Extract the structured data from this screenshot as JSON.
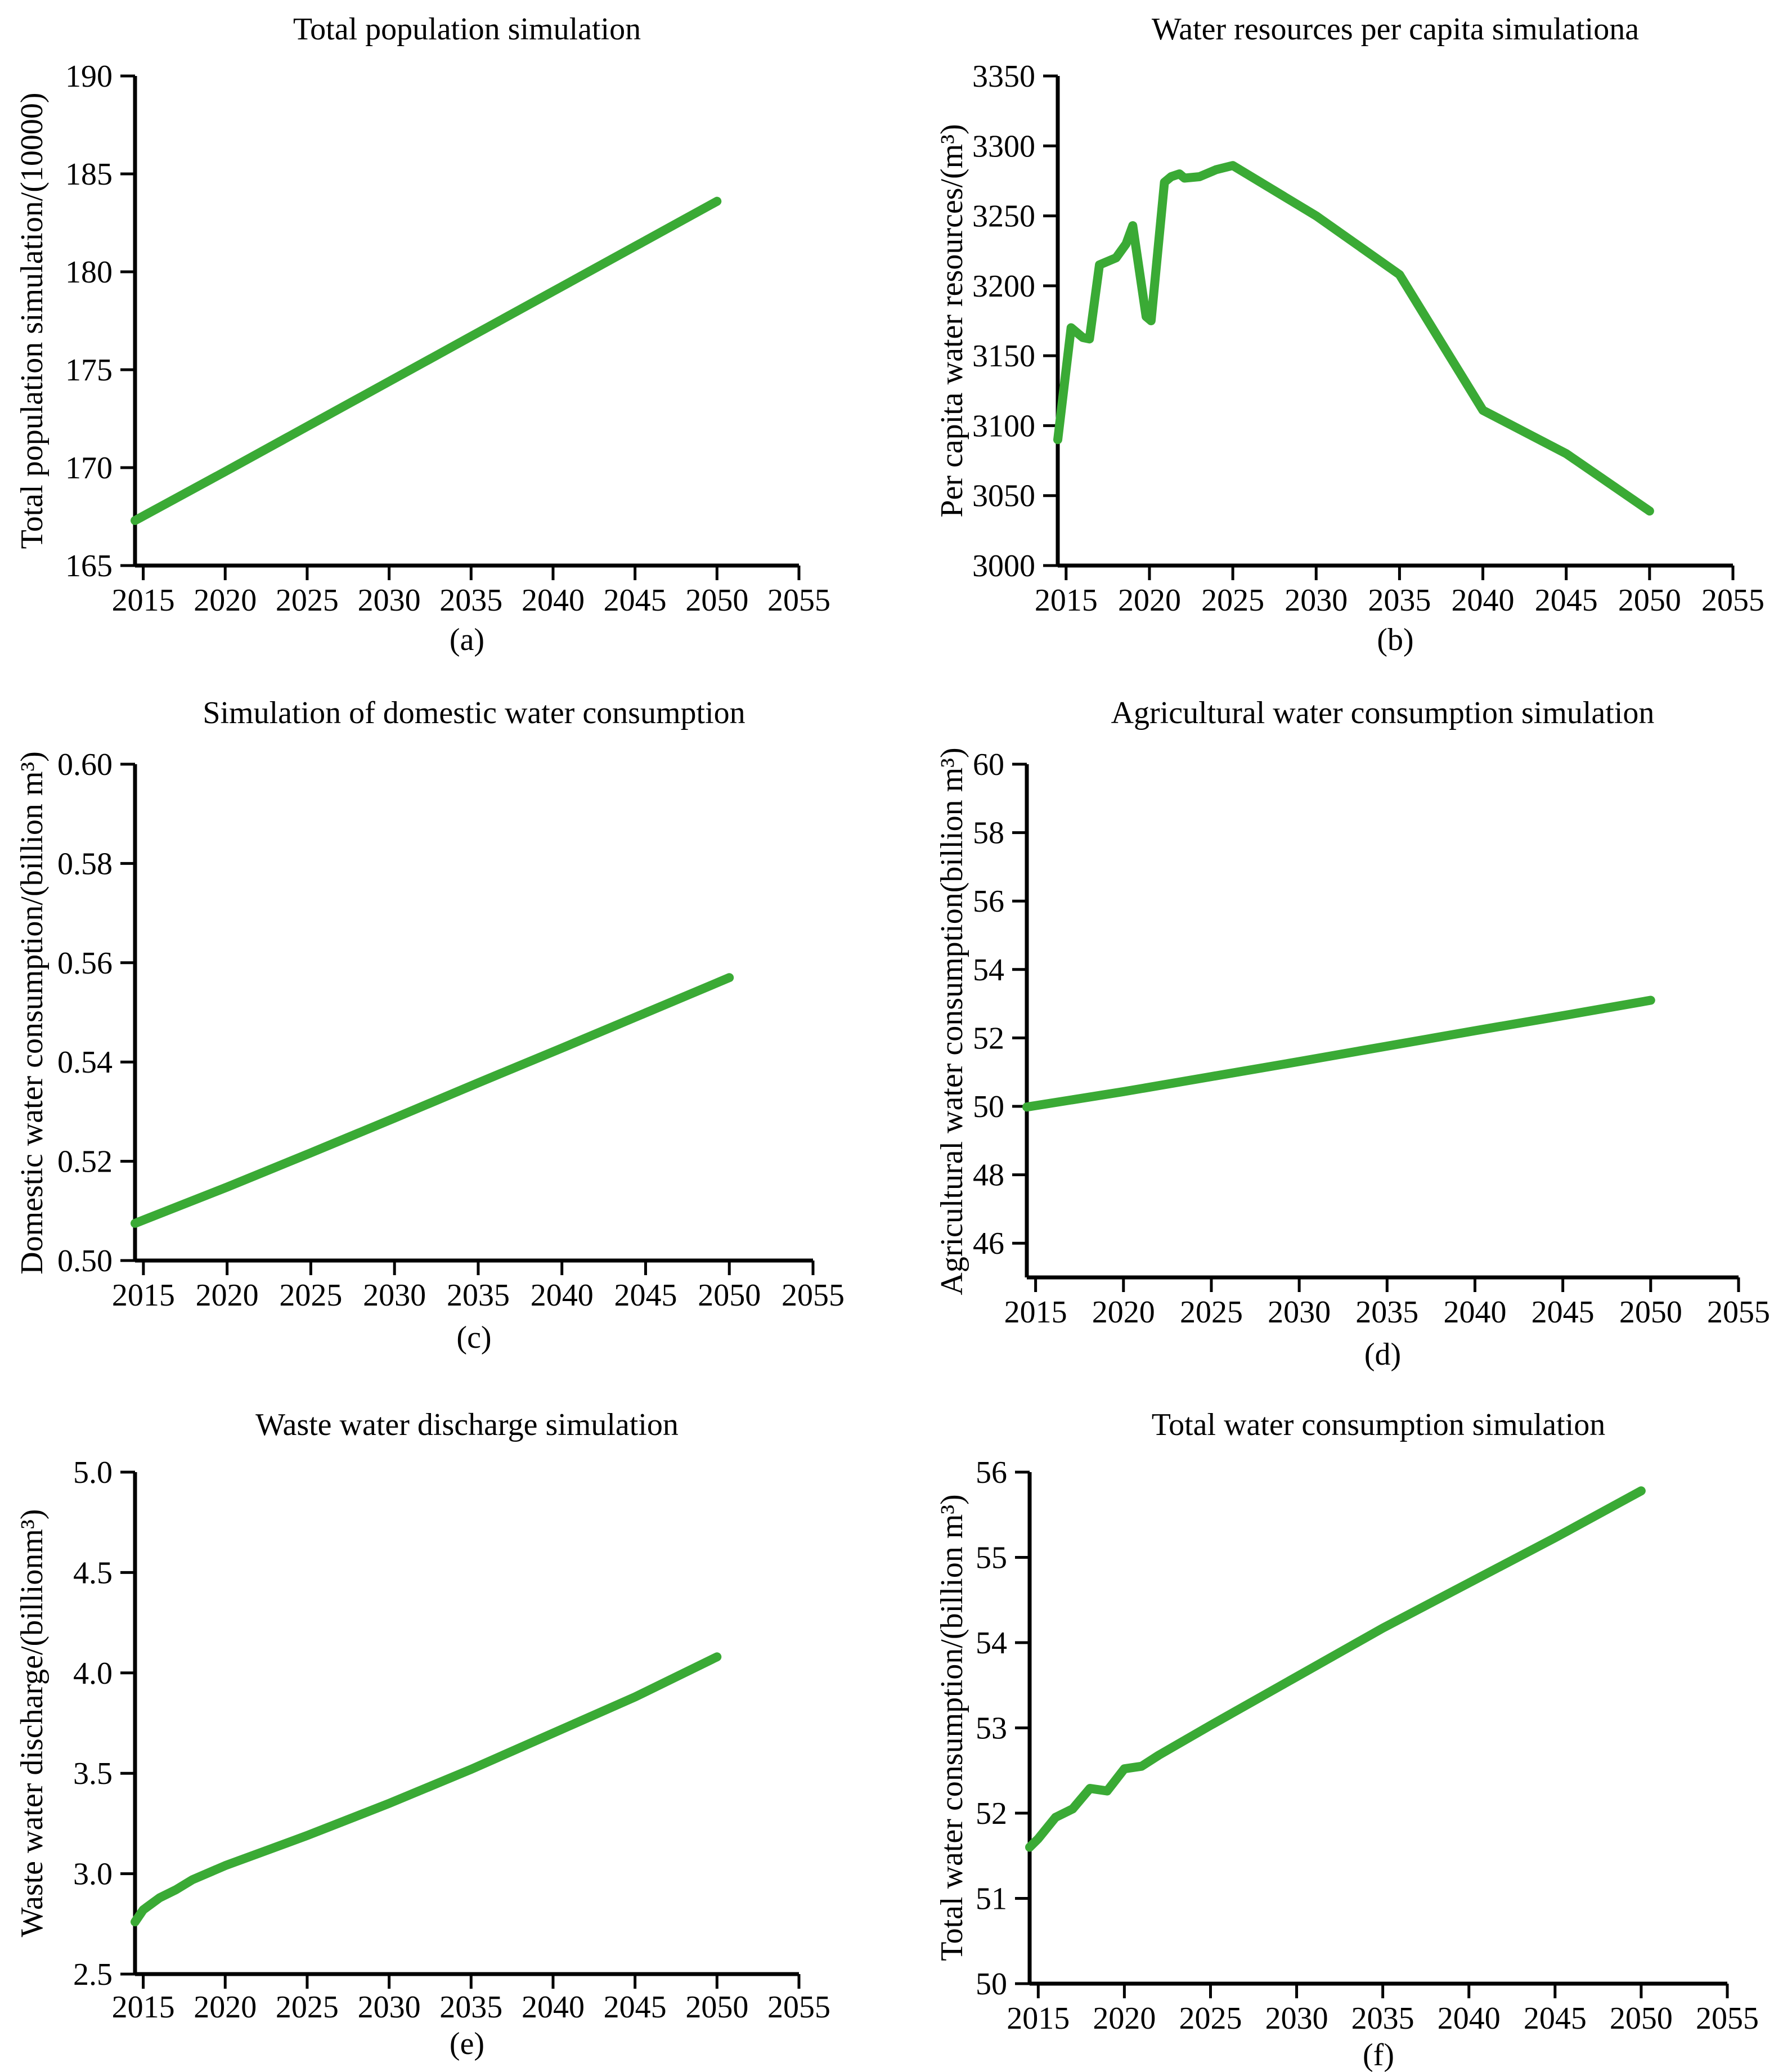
{
  "accent_color": "#3aaa35",
  "chart_data": [
    {
      "panel": "(a)",
      "type": "line",
      "title": "Total population simulation",
      "xlabel": "",
      "ylabel": "Total population simulation/(10000)",
      "xlim": [
        2014.5,
        2055
      ],
      "ylim": [
        165,
        190
      ],
      "xticks": [
        2015,
        2020,
        2025,
        2030,
        2035,
        2040,
        2045,
        2050,
        2055
      ],
      "yticks": [
        165,
        170,
        175,
        180,
        185,
        190
      ],
      "yticklabels": [
        "165",
        "170",
        "175",
        "180",
        "185",
        "190"
      ],
      "series": [
        {
          "name": "Total population",
          "color": "#3aaa35",
          "x": [
            2014.5,
            2020,
            2025,
            2030,
            2035,
            2040,
            2045,
            2050
          ],
          "y": [
            167.3,
            169.8,
            172.1,
            174.4,
            176.7,
            179.0,
            181.3,
            183.6
          ]
        }
      ]
    },
    {
      "panel": "(b)",
      "type": "line",
      "title": "Water resources per capita simulationa",
      "xlabel": "",
      "ylabel": "Per capita water resources/(m³)",
      "xlim": [
        2014.5,
        2055
      ],
      "ylim": [
        3000,
        3350
      ],
      "xticks": [
        2015,
        2020,
        2025,
        2030,
        2035,
        2040,
        2045,
        2050,
        2055
      ],
      "yticks": [
        3000,
        3050,
        3100,
        3150,
        3200,
        3250,
        3300,
        3350
      ],
      "yticklabels": [
        "3000",
        "3050",
        "3100",
        "3150",
        "3200",
        "3250",
        "3300",
        "3350"
      ],
      "series": [
        {
          "name": "Per capita water resources",
          "color": "#3aaa35",
          "x": [
            2014.5,
            2015.3,
            2016,
            2016.4,
            2017,
            2018,
            2018.6,
            2019,
            2019.8,
            2020.1,
            2020.9,
            2021.3,
            2021.8,
            2022.1,
            2023,
            2024,
            2025,
            2030,
            2035,
            2040,
            2045,
            2050
          ],
          "y": [
            3090,
            3170,
            3163,
            3162,
            3215,
            3220,
            3230,
            3243,
            3178,
            3175,
            3274,
            3278,
            3280,
            3277,
            3278,
            3283,
            3286,
            3250,
            3208,
            3111,
            3080,
            3039
          ]
        }
      ]
    },
    {
      "panel": "(c)",
      "type": "line",
      "title": "Simulation of domestic water consumption",
      "xlabel": "",
      "ylabel": "Domestic water consumption/(billion m³)",
      "xlim": [
        2014.5,
        2055
      ],
      "ylim": [
        0.5,
        0.6
      ],
      "xticks": [
        2015,
        2020,
        2025,
        2030,
        2035,
        2040,
        2045,
        2050,
        2055
      ],
      "yticks": [
        0.5,
        0.52,
        0.54,
        0.56,
        0.58,
        0.6
      ],
      "yticklabels": [
        "0.50",
        "0.52",
        "0.54",
        "0.56",
        "0.58",
        "0.60"
      ],
      "series": [
        {
          "name": "Domestic water consumption",
          "color": "#3aaa35",
          "x": [
            2014.5,
            2020,
            2025,
            2030,
            2035,
            2040,
            2045,
            2050
          ],
          "y": [
            0.5075,
            0.5148,
            0.5217,
            0.5287,
            0.5358,
            0.5428,
            0.5499,
            0.557
          ]
        }
      ]
    },
    {
      "panel": "(d)",
      "type": "line",
      "title": "Agricultural water consumption simulation",
      "xlabel": "",
      "ylabel": "Agricultural water consumption(billion m³)",
      "xlim": [
        2014.5,
        2055
      ],
      "ylim": [
        45,
        60
      ],
      "xticks": [
        2015,
        2020,
        2025,
        2030,
        2035,
        2040,
        2045,
        2050,
        2055
      ],
      "yticks": [
        46,
        48,
        50,
        52,
        54,
        56,
        58,
        60
      ],
      "yticklabels": [
        "46",
        "48",
        "50",
        "52",
        "54",
        "56",
        "58",
        "60"
      ],
      "series": [
        {
          "name": "Agricultural water consumption",
          "color": "#3aaa35",
          "x": [
            2014.5,
            2020,
            2025,
            2030,
            2035,
            2040,
            2045,
            2050
          ],
          "y": [
            49.98,
            50.43,
            50.87,
            51.31,
            51.76,
            52.21,
            52.65,
            53.1
          ]
        }
      ]
    },
    {
      "panel": "(e)",
      "type": "line",
      "title": "Waste water discharge simulation",
      "xlabel": "",
      "ylabel": "Waste water discharge/(billionm³)",
      "xlim": [
        2014.5,
        2055
      ],
      "ylim": [
        2.5,
        5.0
      ],
      "xticks": [
        2015,
        2020,
        2025,
        2030,
        2035,
        2040,
        2045,
        2050,
        2055
      ],
      "yticks": [
        2.5,
        3.0,
        3.5,
        4.0,
        4.5,
        5.0
      ],
      "yticklabels": [
        "2.5",
        "3.0",
        "3.5",
        "4.0",
        "4.5",
        "5.0"
      ],
      "series": [
        {
          "name": "Waste water discharge",
          "color": "#3aaa35",
          "x": [
            2014.5,
            2015,
            2016,
            2017,
            2018,
            2020,
            2025,
            2030,
            2035,
            2040,
            2045,
            2050
          ],
          "y": [
            2.76,
            2.82,
            2.88,
            2.92,
            2.97,
            3.04,
            3.19,
            3.35,
            3.52,
            3.7,
            3.88,
            4.08
          ]
        }
      ]
    },
    {
      "panel": "(f)",
      "type": "line",
      "title": "Total water consumption simulation",
      "xlabel": "",
      "ylabel": "Total water consumption/(billion m³)",
      "xlim": [
        2014.5,
        2055
      ],
      "ylim": [
        50,
        56
      ],
      "xticks": [
        2015,
        2020,
        2025,
        2030,
        2035,
        2040,
        2045,
        2050,
        2055
      ],
      "yticks": [
        50,
        51,
        52,
        53,
        54,
        55,
        56
      ],
      "yticklabels": [
        "50",
        "51",
        "52",
        "53",
        "54",
        "55",
        "56"
      ],
      "series": [
        {
          "name": "Total water consumption",
          "color": "#3aaa35",
          "x": [
            2014.5,
            2015,
            2016,
            2017,
            2018,
            2019,
            2020,
            2021,
            2022,
            2025,
            2030,
            2035,
            2040,
            2045,
            2050
          ],
          "y": [
            51.6,
            51.7,
            51.95,
            52.05,
            52.29,
            52.26,
            52.52,
            52.55,
            52.68,
            53.03,
            53.6,
            54.17,
            54.7,
            55.23,
            55.78
          ]
        }
      ]
    }
  ]
}
